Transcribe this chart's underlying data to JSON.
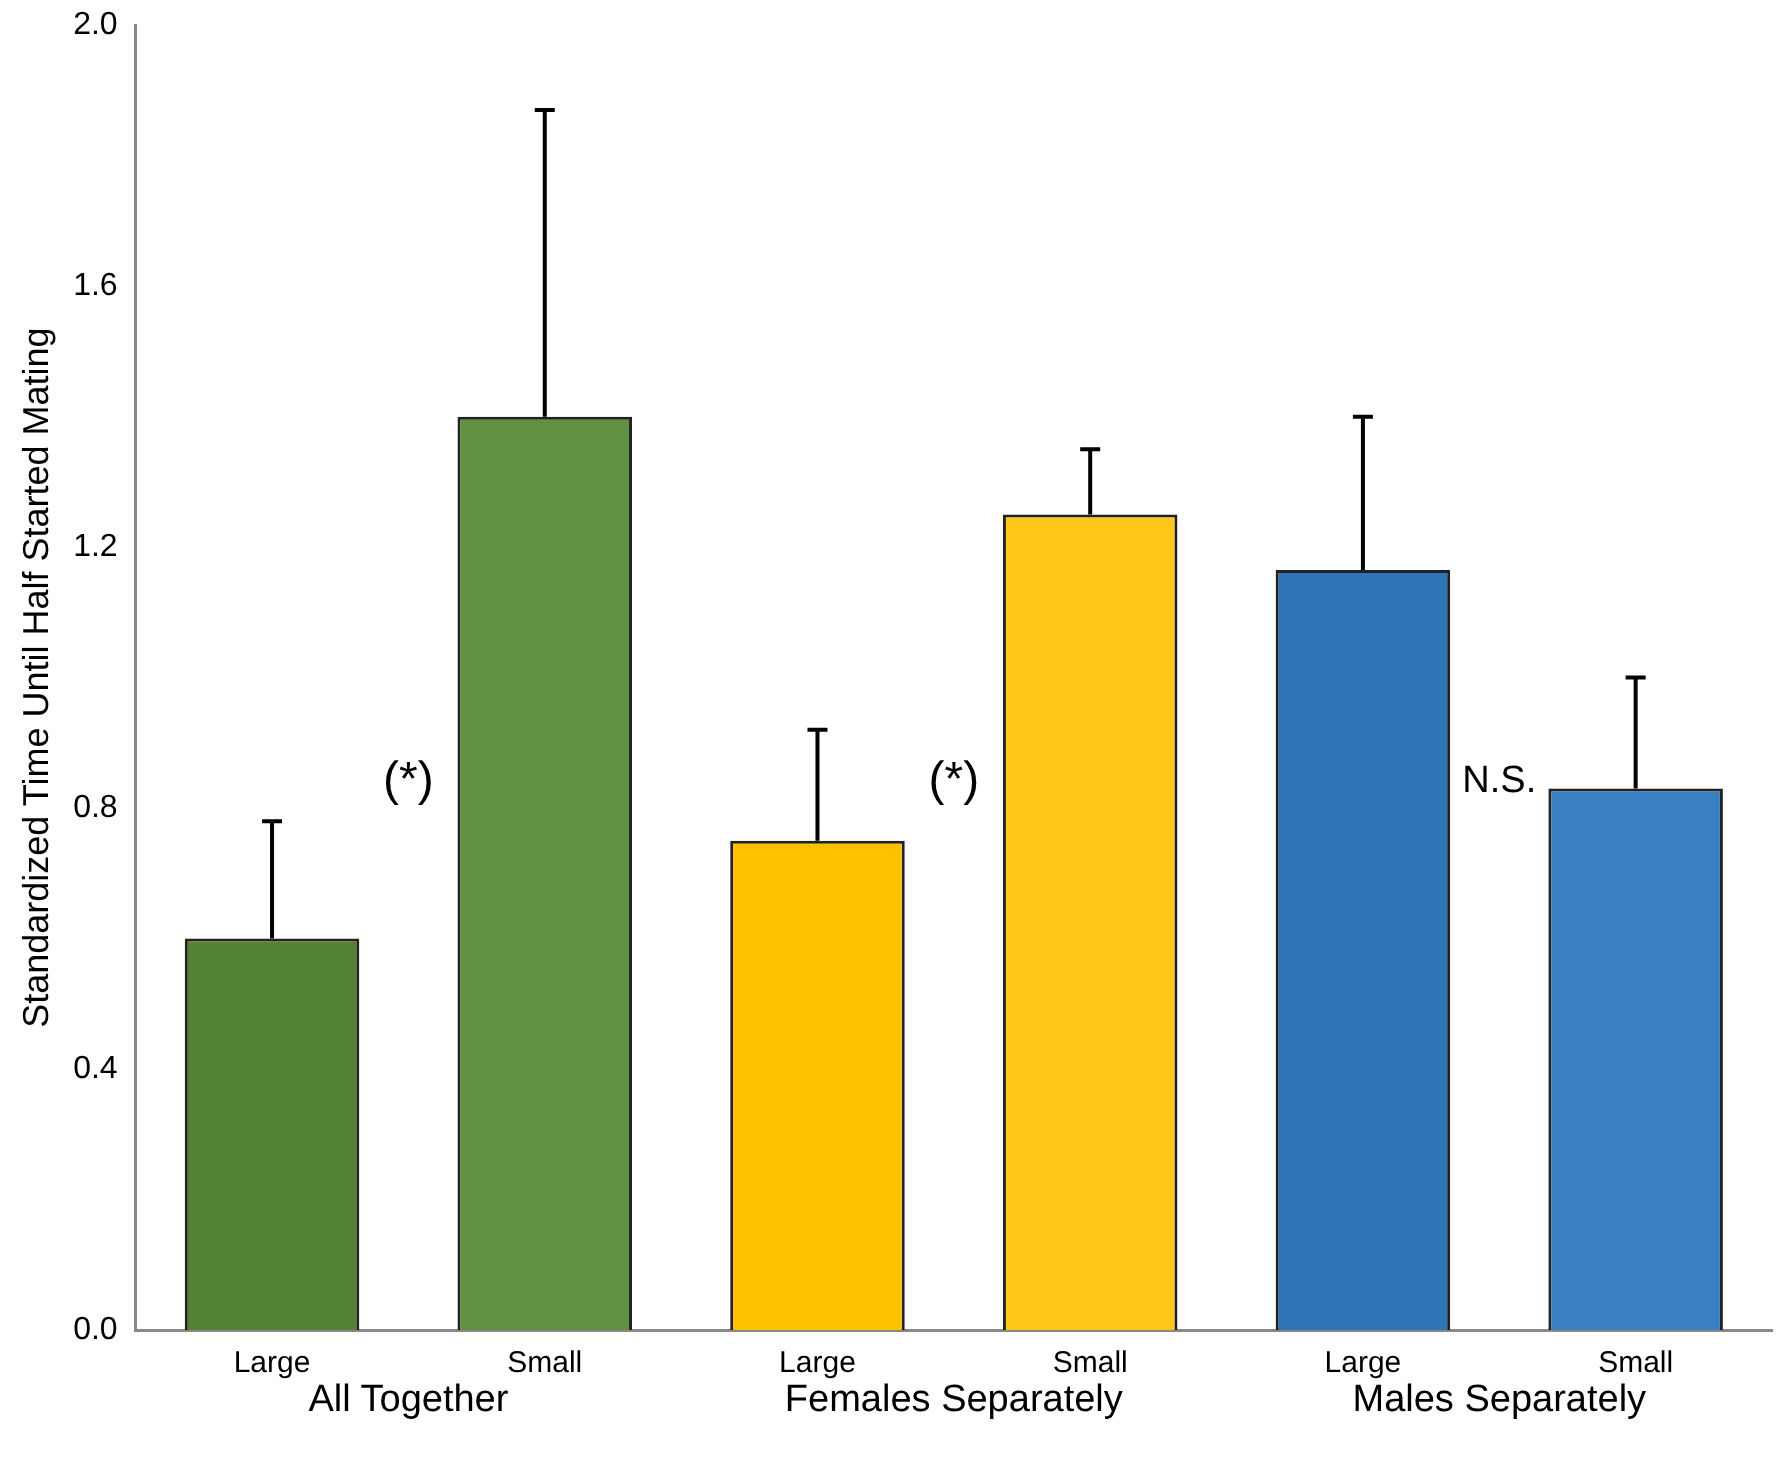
{
  "chart_data": {
    "type": "bar",
    "ylabel": "Standardized Time Until Half Started Mating",
    "categories": [
      "Large",
      "Small",
      "Large",
      "Small",
      "Large",
      "Small"
    ],
    "values": [
      0.6,
      1.4,
      0.75,
      1.25,
      1.165,
      0.83
    ],
    "colors": [
      "#548235",
      "#5f9140",
      "#ffc000",
      "#ffc61a",
      "#2e75b6",
      "#3a80c2"
    ],
    "errors": [
      [
        0.6,
        0.78
      ],
      [
        1.4,
        1.87
      ],
      [
        0.75,
        0.92
      ],
      [
        1.25,
        1.35
      ],
      [
        1.165,
        1.4
      ],
      [
        0.83,
        1.0
      ]
    ],
    "ylim": [
      0,
      2.0
    ],
    "yticks": [
      {
        "value": 0,
        "label": "0.0"
      },
      {
        "value": 0.4,
        "label": "0.4"
      },
      {
        "value": 0.8,
        "label": "0.8"
      },
      {
        "value": 1.2,
        "label": "1.2"
      },
      {
        "value": 1.6,
        "label": "1.6"
      },
      {
        "value": 2.0,
        "label": "2.0"
      }
    ],
    "annotations": [
      "All Together",
      "Females Separately",
      "Males Separately",
      "(*)",
      "(*)",
      "N.S."
    ],
    "grid": false,
    "legend": false
  }
}
